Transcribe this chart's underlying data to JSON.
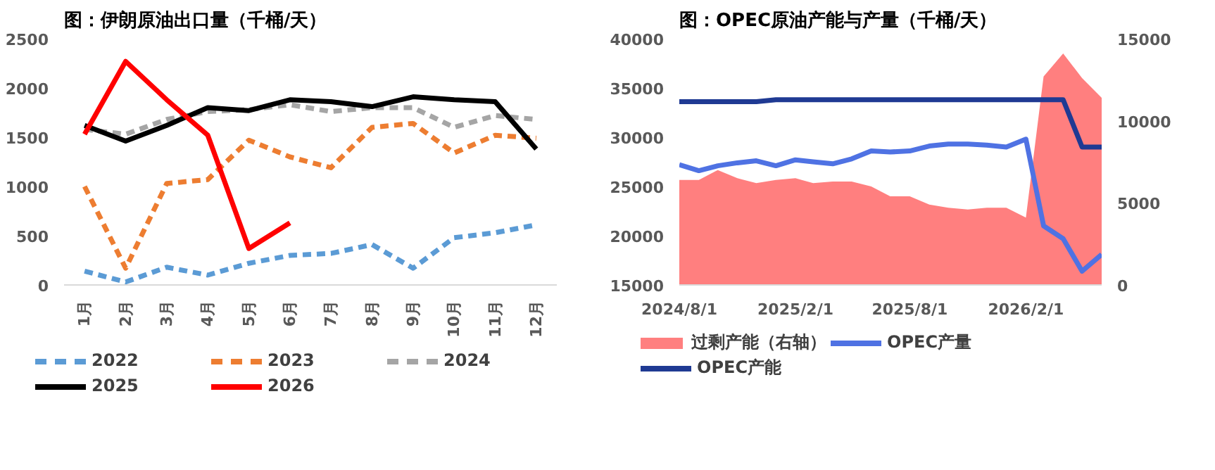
{
  "chart_data": [
    {
      "type": "line",
      "title": "图：伊朗原油出口量（千桶/天）",
      "categories": [
        "1月",
        "2月",
        "3月",
        "4月",
        "5月",
        "6月",
        "7月",
        "8月",
        "9月",
        "10月",
        "11月",
        "12月"
      ],
      "ylim": [
        0,
        2500
      ],
      "yticks": [
        0,
        500,
        1000,
        1500,
        2000,
        2500
      ],
      "grid": false,
      "legend": "bottom",
      "series": [
        {
          "name": "2022",
          "color": "#5b9bd5",
          "line_style": "dashed",
          "values": [
            140,
            30,
            180,
            100,
            220,
            300,
            320,
            410,
            170,
            480,
            530,
            610
          ]
        },
        {
          "name": "2023",
          "color": "#ed7d31",
          "line_style": "dashed",
          "values": [
            1000,
            170,
            1030,
            1070,
            1470,
            1300,
            1190,
            1600,
            1640,
            1340,
            1520,
            1490
          ]
        },
        {
          "name": "2024",
          "color": "#a5a5a5",
          "line_style": "dashed",
          "values": [
            1580,
            1530,
            1680,
            1760,
            1780,
            1830,
            1760,
            1800,
            1800,
            1600,
            1720,
            1680
          ]
        },
        {
          "name": "2025",
          "color": "#000000",
          "line_style": "solid",
          "values": [
            1620,
            1460,
            1620,
            1800,
            1770,
            1880,
            1860,
            1810,
            1910,
            1880,
            1860,
            1380
          ]
        },
        {
          "name": "2026",
          "color": "#ff0000",
          "line_style": "solid",
          "values": [
            1530,
            2270,
            1880,
            1520,
            370,
            630,
            null,
            null,
            null,
            null,
            null,
            null
          ]
        }
      ]
    },
    {
      "type": "line",
      "title": "图：OPEC原油产能与产量（千桶/天）",
      "x": [
        "2024-08",
        "2024-09",
        "2024-10",
        "2024-11",
        "2024-12",
        "2025-01",
        "2025-02",
        "2025-03",
        "2025-04",
        "2025-05",
        "2025-06",
        "2025-07",
        "2025-08",
        "2025-09",
        "2025-10",
        "2025-11",
        "2025-12",
        "2026-01",
        "2026-02",
        "2026-03",
        "2026-04",
        "2026-05",
        "2026-06"
      ],
      "xlim": [
        "2024-08-01",
        "2026-06-01"
      ],
      "xticks": [
        {
          "value": "2024-08-01",
          "label": "2024/8/1"
        },
        {
          "value": "2025-02-01",
          "label": "2025/2/1"
        },
        {
          "value": "2025-08-01",
          "label": "2025/8/1"
        },
        {
          "value": "2026-02-01",
          "label": "2026/2/1"
        }
      ],
      "ylim": [
        15000,
        40000
      ],
      "yticks": [
        15000,
        20000,
        25000,
        30000,
        35000,
        40000
      ],
      "y2lim": [
        0,
        15000
      ],
      "y2ticks": [
        0,
        5000,
        10000,
        15000
      ],
      "grid": false,
      "legend": "bottom",
      "series": [
        {
          "name": "过剩产能（右轴）",
          "type": "area",
          "axis": "y2",
          "color": "#ff7f7f",
          "values": [
            6400,
            6400,
            7000,
            6500,
            6200,
            6400,
            6500,
            6200,
            6300,
            6300,
            6000,
            5400,
            5400,
            4900,
            4700,
            4600,
            4700,
            4700,
            4100,
            12700,
            14100,
            12600,
            11400
          ]
        },
        {
          "name": "OPEC产量",
          "type": "line",
          "color": "#4f72e3",
          "line_style": "solid",
          "values": [
            27200,
            26600,
            27100,
            27400,
            27600,
            27100,
            27700,
            27500,
            27300,
            27800,
            28600,
            28500,
            28600,
            29100,
            29300,
            29300,
            29200,
            29000,
            29800,
            21000,
            19700,
            16400,
            18100
          ]
        },
        {
          "name": "OPEC产能",
          "type": "line",
          "color": "#1f3a93",
          "line_style": "solid",
          "values": [
            33600,
            33600,
            33600,
            33600,
            33600,
            33800,
            33800,
            33800,
            33800,
            33800,
            33800,
            33800,
            33800,
            33800,
            33800,
            33800,
            33800,
            33800,
            33800,
            33800,
            33800,
            29000,
            29000
          ]
        }
      ]
    }
  ]
}
